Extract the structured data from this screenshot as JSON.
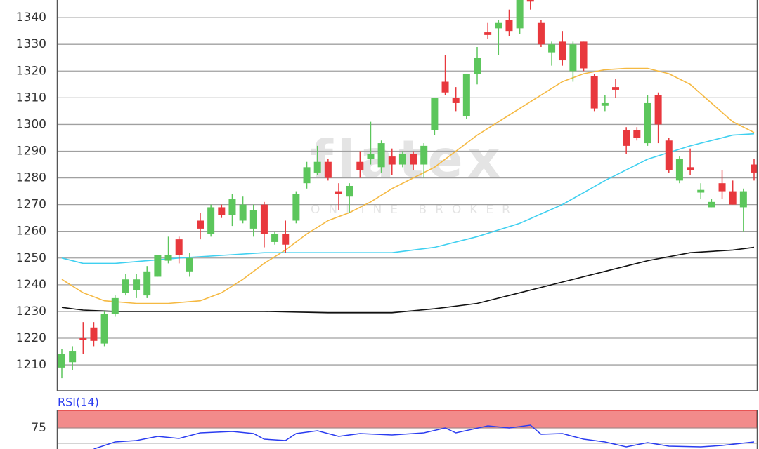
{
  "chart_data": [
    {
      "type": "candlestick",
      "open": [
        1209,
        1211,
        1220,
        1224,
        1218,
        1229,
        1237,
        1238,
        1236,
        1243,
        1249,
        1257,
        1245,
        1264,
        1259,
        1269,
        1266,
        1264,
        1261,
        1270,
        1256,
        1259,
        1264,
        1278,
        1282,
        1286,
        1275,
        1273,
        1286,
        1287,
        1284,
        1288,
        1285,
        1289,
        1285,
        1298,
        1316,
        1310,
        1303,
        1319,
        1334.5,
        1336,
        1339,
        1336,
        1348,
        1338,
        1327,
        1331,
        1320,
        1331,
        1318,
        1307,
        1314,
        1298,
        1298,
        1293,
        1311,
        1294,
        1279,
        1284,
        1274.5,
        1269,
        1278,
        1275,
        1269,
        1285
      ],
      "high": [
        1216,
        1217,
        1226,
        1226,
        1230,
        1236,
        1244,
        1244,
        1247,
        1251,
        1258,
        1258,
        1252,
        1267,
        1270,
        1270,
        1274,
        1273,
        1270,
        1271,
        1260,
        1264,
        1275,
        1286,
        1292,
        1287,
        1278,
        1278,
        1290,
        1301,
        1294,
        1291,
        1290,
        1290,
        1293,
        1310,
        1326,
        1314,
        1319,
        1329,
        1338,
        1339,
        1343,
        1347,
        1349,
        1339,
        1331,
        1335,
        1331,
        1331,
        1319,
        1311,
        1317,
        1299,
        1299,
        1311,
        1312,
        1295,
        1288,
        1291,
        1278,
        1272,
        1283,
        1279,
        1276,
        1287
      ],
      "low": [
        1205,
        1208,
        1214,
        1217,
        1217,
        1228,
        1236,
        1235,
        1235,
        1243,
        1248,
        1248,
        1243,
        1257,
        1258,
        1265,
        1262,
        1263,
        1258,
        1254,
        1255,
        1252,
        1263,
        1276,
        1281,
        1279,
        1268,
        1267,
        1280,
        1285,
        1282,
        1281,
        1284,
        1283,
        1280,
        1296,
        1311,
        1305,
        1302,
        1315,
        1332,
        1326,
        1333,
        1334,
        1343,
        1329,
        1322,
        1322,
        1316,
        1320,
        1305,
        1305,
        1310,
        1289,
        1294,
        1292,
        1293,
        1282,
        1278,
        1281,
        1272,
        1269,
        1272,
        1270,
        1260,
        1279
      ],
      "close": [
        1214,
        1215,
        1219.5,
        1219,
        1229,
        1235,
        1242,
        1242,
        1245,
        1251,
        1251,
        1251,
        1250,
        1261,
        1269,
        1266,
        1272,
        1270,
        1268,
        1259,
        1259,
        1255,
        1274,
        1284,
        1286,
        1280,
        1274,
        1277,
        1283,
        1289,
        1293,
        1285,
        1289,
        1285,
        1292,
        1310,
        1312,
        1308,
        1319,
        1325,
        1333.5,
        1338,
        1335,
        1347,
        1346,
        1330,
        1330,
        1324,
        1330,
        1321,
        1306,
        1308,
        1313,
        1292,
        1295,
        1308,
        1300,
        1283,
        1287,
        1283,
        1275.5,
        1271,
        1275,
        1270,
        1275,
        1282
      ],
      "up_color": "#5cc65c",
      "down_color": "#e8383d",
      "lines": [
        {
          "color": "#f5b942",
          "x": [
            0,
            2,
            4,
            7,
            10,
            13,
            15,
            17,
            19,
            21,
            23,
            25,
            27,
            29,
            31,
            33,
            35,
            37,
            39,
            41,
            43,
            45,
            47,
            49,
            51,
            53,
            55,
            57,
            59,
            61,
            63,
            65
          ],
          "values": [
            1242,
            1237,
            1234,
            1233,
            1233,
            1234,
            1237,
            1242,
            1248,
            1253,
            1259,
            1264,
            1267,
            1271,
            1276,
            1280,
            1284,
            1290,
            1296,
            1301,
            1306,
            1311,
            1316,
            1319,
            1320.5,
            1321,
            1321,
            1319,
            1315,
            1308,
            1301,
            1297
          ]
        },
        {
          "color": "#3fd0f0",
          "x": [
            0,
            2,
            5,
            8,
            11,
            15,
            19,
            23,
            27,
            31,
            35,
            39,
            43,
            47,
            51,
            55,
            59,
            63,
            65
          ],
          "values": [
            1250,
            1248,
            1248,
            1249,
            1250,
            1251,
            1252,
            1252,
            1252,
            1252,
            1254,
            1258,
            1263,
            1270,
            1279,
            1287,
            1292,
            1296,
            1296.5
          ]
        },
        {
          "color": "#111111",
          "x": [
            0,
            2,
            5,
            11,
            19,
            25,
            31,
            35,
            39,
            43,
            47,
            51,
            55,
            59,
            63,
            65
          ],
          "values": [
            1231.5,
            1230.5,
            1230,
            1230,
            1230,
            1229.5,
            1229.5,
            1231,
            1233,
            1237,
            1241,
            1245,
            1249,
            1252,
            1253,
            1254
          ]
        }
      ],
      "ylim": [
        1200.3,
        1346.6
      ],
      "yticks": [
        1210,
        1220,
        1230,
        1240,
        1250,
        1260,
        1270,
        1280,
        1290,
        1300,
        1310,
        1320,
        1330,
        1340
      ],
      "grid": true,
      "watermark": {
        "title": "flatex",
        "subtitle": "ONLINE BROKER"
      }
    },
    {
      "type": "line",
      "title": "RSI(14)",
      "color": "#2a3cf0",
      "x": [
        3,
        5,
        7,
        9,
        11,
        13,
        16,
        18,
        19,
        21,
        22,
        24,
        26,
        28,
        31,
        34,
        36,
        37,
        40,
        42,
        44,
        45,
        47,
        49,
        51,
        53,
        55,
        57,
        60,
        62,
        65
      ],
      "values": [
        45,
        55,
        57,
        63,
        60,
        68,
        70,
        67,
        59,
        57,
        67,
        71,
        63,
        67,
        65,
        68,
        75,
        68,
        78,
        75,
        79,
        66,
        67,
        59,
        55,
        48,
        54,
        49,
        48,
        50,
        55
      ],
      "band": [
        75,
        100
      ],
      "band_color": "#f28b8b",
      "ylim": [
        45,
        100
      ],
      "yticks": [
        75
      ]
    }
  ]
}
